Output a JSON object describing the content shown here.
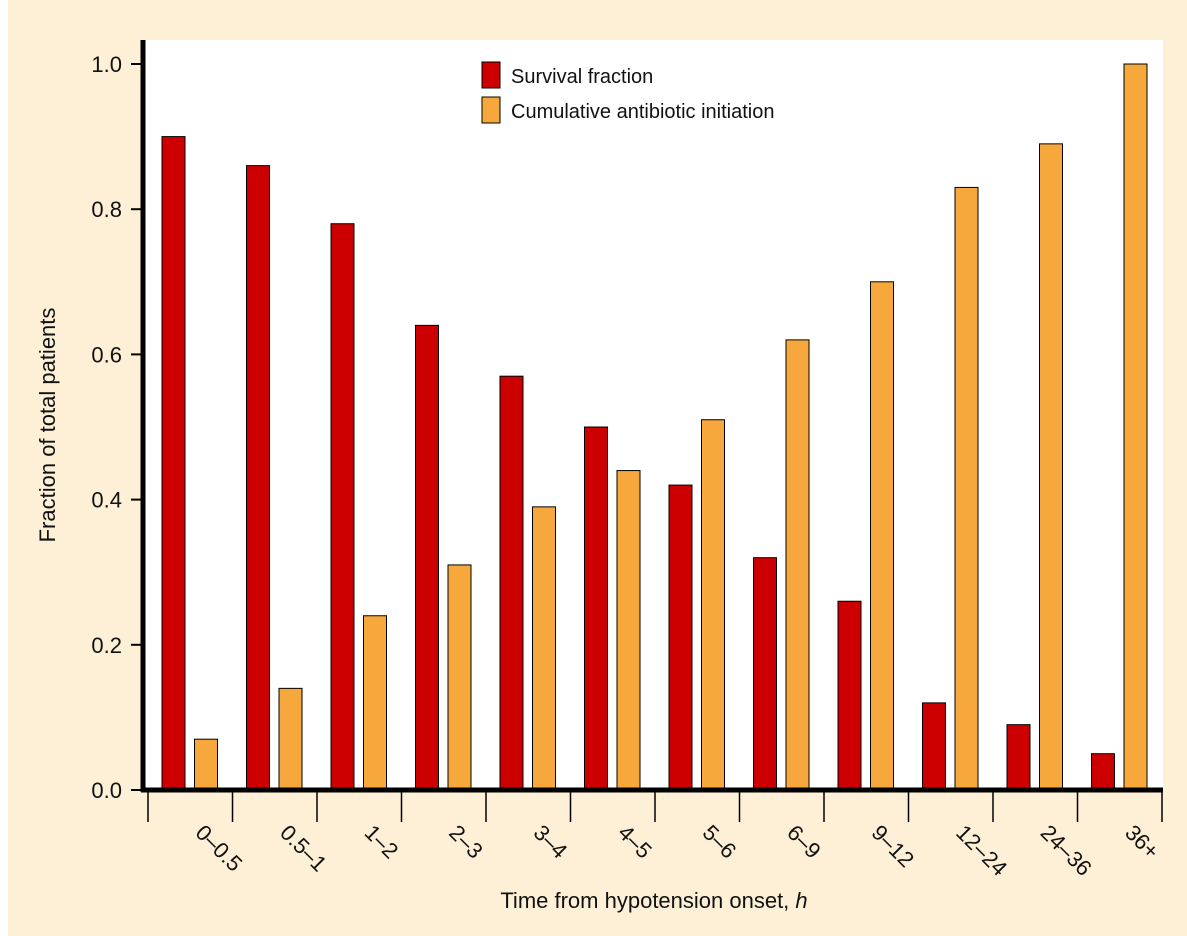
{
  "chart_data": {
    "type": "bar",
    "categories": [
      "0–0.5",
      "0.5–1",
      "1–2",
      "2–3",
      "3–4",
      "4–5",
      "5–6",
      "6–9",
      "9–12",
      "12–24",
      "24–36",
      "36+"
    ],
    "series": [
      {
        "name": "Survival fraction",
        "color": "#cc0000",
        "values": [
          0.9,
          0.86,
          0.78,
          0.64,
          0.57,
          0.5,
          0.42,
          0.32,
          0.26,
          0.12,
          0.09,
          0.05
        ]
      },
      {
        "name": "Cumulative antibiotic initiation",
        "color": "#f7a83c",
        "values": [
          0.07,
          0.14,
          0.24,
          0.31,
          0.39,
          0.44,
          0.51,
          0.62,
          0.7,
          0.83,
          0.89,
          1.0
        ]
      }
    ],
    "xlabel": "Time from hypotension onset, ",
    "xlabel_italic": "h",
    "ylabel": "Fraction of total patients",
    "ylim": [
      0,
      1.0
    ],
    "yticks": [
      "0.0",
      "0.2",
      "0.4",
      "0.6",
      "0.8",
      "1.0"
    ],
    "grid": false,
    "legend_position": "top-center"
  }
}
